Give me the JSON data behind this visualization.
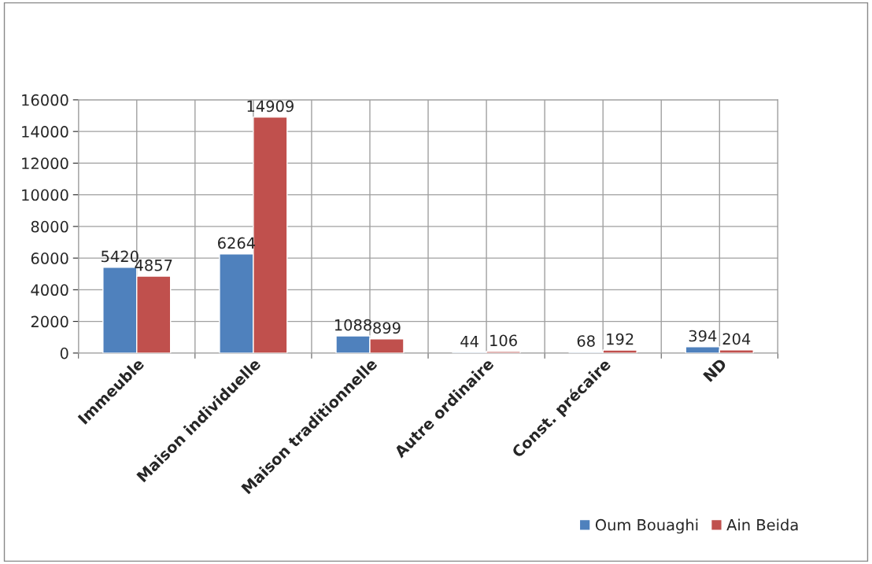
{
  "chart_data": {
    "type": "bar",
    "categories": [
      "Immeuble",
      "Maison individuelle",
      "Maison traditionnelle",
      "Autre ordinaire",
      "Const. précaire",
      "ND"
    ],
    "series": [
      {
        "name": "Oum Bouaghi",
        "color": "#4f81bd",
        "values": [
          5420,
          6264,
          1088,
          44,
          68,
          394
        ]
      },
      {
        "name": "Ain Beida",
        "color": "#c0504d",
        "values": [
          4857,
          14909,
          899,
          106,
          192,
          204
        ]
      }
    ],
    "ylim": [
      0,
      16000
    ],
    "yticks": [
      0,
      2000,
      4000,
      6000,
      8000,
      10000,
      12000,
      14000,
      16000
    ],
    "grid": true,
    "data_labels": true,
    "legend": "bottom right"
  }
}
